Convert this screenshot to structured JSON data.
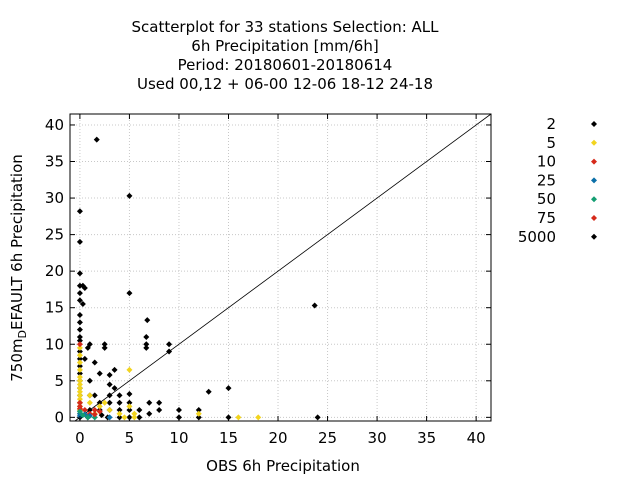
{
  "chart_data": {
    "type": "scatter",
    "title": [
      "Scatterplot for   33 stations Selection: ALL",
      "6h Precipitation [mm/6h]",
      "Period: 20180601-20180614",
      "Used  00,12  + 06-00 12-06 18-12 24-18"
    ],
    "xlabel": "OBS 6h Precipitation",
    "ylabel": {
      "base": "750m",
      "sub": "D",
      "rest": "EFAULT 6h Precipitation"
    },
    "xlim": [
      -1,
      41.5
    ],
    "ylim": [
      -0.5,
      41.5
    ],
    "xticks": [
      0,
      5,
      10,
      15,
      20,
      25,
      30,
      35,
      40
    ],
    "yticks": [
      0,
      5,
      10,
      15,
      20,
      25,
      30,
      35,
      40
    ],
    "grid": true,
    "diagonal": true,
    "legend_position": "right",
    "series": [
      {
        "name": "2",
        "color": "#000000",
        "points": [
          [
            0,
            28.2
          ],
          [
            0,
            24
          ],
          [
            0,
            19.7
          ],
          [
            0,
            18
          ],
          [
            0,
            17
          ],
          [
            0,
            16
          ],
          [
            0,
            14
          ],
          [
            0,
            13
          ],
          [
            0,
            12
          ],
          [
            0,
            11
          ],
          [
            0,
            10.5
          ],
          [
            0,
            9
          ],
          [
            0,
            8
          ],
          [
            0,
            7
          ],
          [
            0,
            6
          ],
          [
            0,
            5
          ],
          [
            0,
            4
          ],
          [
            0,
            3
          ],
          [
            0,
            2
          ],
          [
            0,
            1
          ],
          [
            0,
            0
          ],
          [
            0.3,
            18
          ],
          [
            0.5,
            17.7
          ],
          [
            0.3,
            15.5
          ],
          [
            1,
            10
          ],
          [
            0.8,
            9.5
          ],
          [
            0.5,
            8
          ],
          [
            1,
            5
          ],
          [
            1,
            3
          ],
          [
            1,
            1
          ],
          [
            0.8,
            0
          ],
          [
            1.7,
            38
          ],
          [
            1.5,
            7.5
          ],
          [
            2,
            6
          ],
          [
            1.5,
            3
          ],
          [
            2,
            2
          ],
          [
            2,
            1
          ],
          [
            2.2,
            0.3
          ],
          [
            2.5,
            10
          ],
          [
            2.5,
            9.5
          ],
          [
            3,
            5.8
          ],
          [
            3,
            4.5
          ],
          [
            3,
            3
          ],
          [
            3,
            2
          ],
          [
            3,
            1
          ],
          [
            2.8,
            0
          ],
          [
            3.5,
            6.5
          ],
          [
            3.5,
            4
          ],
          [
            4,
            3
          ],
          [
            4,
            2
          ],
          [
            4,
            1
          ],
          [
            4,
            0
          ],
          [
            5,
            30.3
          ],
          [
            5,
            17
          ],
          [
            5,
            3.2
          ],
          [
            5,
            2
          ],
          [
            5,
            1
          ],
          [
            5,
            0
          ],
          [
            6,
            1
          ],
          [
            6,
            0
          ],
          [
            6.8,
            13.3
          ],
          [
            6.7,
            11
          ],
          [
            6.7,
            10
          ],
          [
            6.7,
            9.5
          ],
          [
            7,
            2
          ],
          [
            7,
            0.5
          ],
          [
            8,
            2
          ],
          [
            8,
            1
          ],
          [
            9,
            10
          ],
          [
            9,
            9
          ],
          [
            10,
            1
          ],
          [
            10,
            0
          ],
          [
            12,
            1
          ],
          [
            12,
            0
          ],
          [
            13,
            3.5
          ],
          [
            15,
            4
          ],
          [
            15,
            0
          ],
          [
            23.7,
            15.3
          ],
          [
            24,
            0
          ]
        ]
      },
      {
        "name": "5",
        "color": "#f2d41e",
        "points": [
          [
            0,
            9.5
          ],
          [
            0,
            8.5
          ],
          [
            0,
            7.5
          ],
          [
            0,
            6.5
          ],
          [
            0,
            5.5
          ],
          [
            0,
            5
          ],
          [
            0,
            4.5
          ],
          [
            0,
            4
          ],
          [
            0,
            3.5
          ],
          [
            0,
            3
          ],
          [
            0,
            2.5
          ],
          [
            0,
            2
          ],
          [
            0,
            1.5
          ],
          [
            0,
            1
          ],
          [
            0,
            0.5
          ],
          [
            1,
            3
          ],
          [
            1,
            2
          ],
          [
            1.5,
            0.5
          ],
          [
            2,
            1.5
          ],
          [
            2.5,
            2
          ],
          [
            3,
            1
          ],
          [
            4,
            0.5
          ],
          [
            4.5,
            0
          ],
          [
            5,
            6.5
          ],
          [
            5,
            1.5
          ],
          [
            5.5,
            0.5
          ],
          [
            5.5,
            0
          ],
          [
            12,
            0.5
          ],
          [
            16,
            0
          ],
          [
            18,
            0
          ]
        ]
      },
      {
        "name": "10",
        "color": "#d62a1a",
        "points": [
          [
            0,
            10
          ],
          [
            0,
            2
          ],
          [
            0,
            1.2
          ],
          [
            0.5,
            1
          ],
          [
            1,
            0.5
          ],
          [
            1.5,
            1
          ],
          [
            2,
            0.8
          ]
        ]
      },
      {
        "name": "25",
        "color": "#0b6fa8",
        "points": [
          [
            0,
            0.5
          ],
          [
            0,
            0.2
          ],
          [
            0.5,
            0.4
          ],
          [
            1,
            0.2
          ],
          [
            3,
            0
          ]
        ]
      },
      {
        "name": "50",
        "color": "#149e72",
        "points": [
          [
            0,
            0.8
          ],
          [
            0.3,
            0.3
          ],
          [
            0.8,
            0
          ],
          [
            1.5,
            0
          ]
        ]
      },
      {
        "name": "75",
        "color": "#d62a1a",
        "points": [
          [
            0,
            1.5
          ],
          [
            1.5,
            0.4
          ]
        ]
      },
      {
        "name": "5000",
        "color": "#000000",
        "points": []
      }
    ]
  }
}
